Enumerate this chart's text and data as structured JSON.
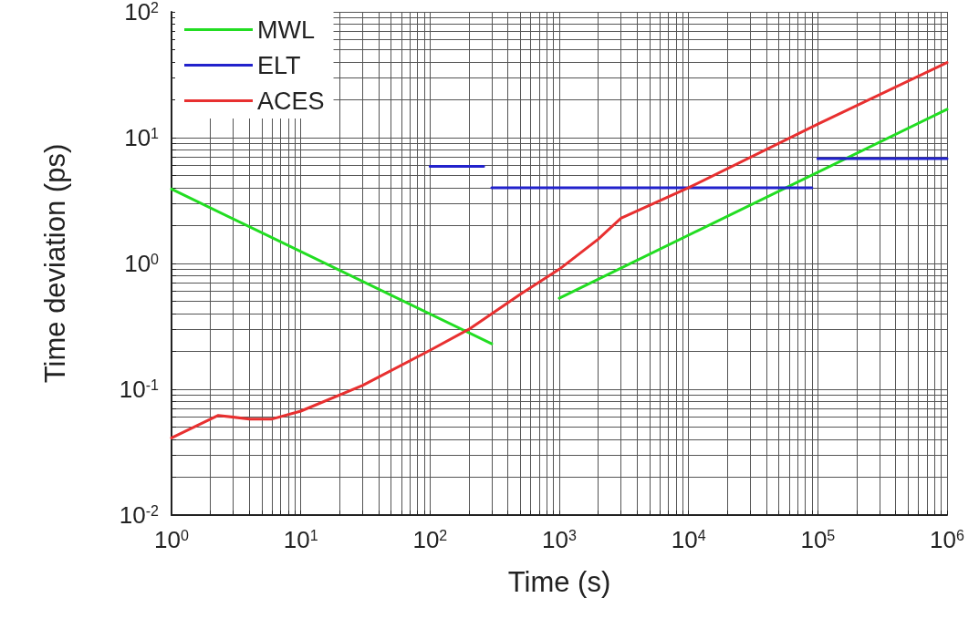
{
  "chart_data": {
    "type": "line",
    "xlabel": "Time (s)",
    "ylabel": "Time deviation (ps)",
    "log": "xy",
    "grid": true,
    "legend": "top left",
    "line_style": "solid",
    "marker": "none",
    "xlim": [
      1,
      1000000
    ],
    "ylim": [
      0.01,
      100
    ],
    "xticks": [
      {
        "value": 1,
        "label": "10$^{0}$"
      },
      {
        "value": 2,
        "label": null
      },
      {
        "value": 3,
        "label": null
      },
      {
        "value": 4,
        "label": null
      },
      {
        "value": 5,
        "label": null
      },
      {
        "value": 6,
        "label": null
      },
      {
        "value": 7,
        "label": null
      },
      {
        "value": 8,
        "label": null
      },
      {
        "value": 9,
        "label": null
      },
      {
        "value": 10,
        "label": "10$^{1}$"
      },
      {
        "value": 20,
        "label": null
      },
      {
        "value": 30,
        "label": null
      },
      {
        "value": 40,
        "label": null
      },
      {
        "value": 50,
        "label": null
      },
      {
        "value": 60,
        "label": null
      },
      {
        "value": 70,
        "label": null
      },
      {
        "value": 80,
        "label": null
      },
      {
        "value": 90,
        "label": null
      },
      {
        "value": 100,
        "label": "10$^{2}$"
      },
      {
        "value": 200,
        "label": null
      },
      {
        "value": 300,
        "label": null
      },
      {
        "value": 400,
        "label": null
      },
      {
        "value": 500,
        "label": null
      },
      {
        "value": 600,
        "label": null
      },
      {
        "value": 700,
        "label": null
      },
      {
        "value": 800,
        "label": null
      },
      {
        "value": 900,
        "label": null
      },
      {
        "value": 1000,
        "label": "10$^{3}$"
      },
      {
        "value": 2000,
        "label": null
      },
      {
        "value": 3000,
        "label": null
      },
      {
        "value": 4000,
        "label": null
      },
      {
        "value": 5000,
        "label": null
      },
      {
        "value": 6000,
        "label": null
      },
      {
        "value": 7000,
        "label": null
      },
      {
        "value": 8000,
        "label": null
      },
      {
        "value": 9000,
        "label": null
      },
      {
        "value": 10000,
        "label": "10$^{4}$"
      },
      {
        "value": 20000,
        "label": null
      },
      {
        "value": 30000,
        "label": null
      },
      {
        "value": 40000,
        "label": null
      },
      {
        "value": 50000,
        "label": null
      },
      {
        "value": 60000,
        "label": null
      },
      {
        "value": 70000,
        "label": null
      },
      {
        "value": 80000,
        "label": null
      },
      {
        "value": 90000,
        "label": null
      },
      {
        "value": 100000,
        "label": "10$^{5}$"
      },
      {
        "value": 200000,
        "label": null
      },
      {
        "value": 300000,
        "label": null
      },
      {
        "value": 400000,
        "label": null
      },
      {
        "value": 500000,
        "label": null
      },
      {
        "value": 600000,
        "label": null
      },
      {
        "value": 700000,
        "label": null
      },
      {
        "value": 800000,
        "label": null
      },
      {
        "value": 900000,
        "label": null
      },
      {
        "value": 1000000,
        "label": "10$^{6}$"
      }
    ],
    "yticks": [
      {
        "value": 0.01,
        "label": "10$^{-2}$"
      },
      {
        "value": 0.02,
        "label": null
      },
      {
        "value": 0.03,
        "label": null
      },
      {
        "value": 0.04,
        "label": null
      },
      {
        "value": 0.05,
        "label": null
      },
      {
        "value": 0.06,
        "label": null
      },
      {
        "value": 0.07,
        "label": null
      },
      {
        "value": 0.08,
        "label": null
      },
      {
        "value": 0.09,
        "label": null
      },
      {
        "value": 0.1,
        "label": "10$^{-1}$"
      },
      {
        "value": 0.2,
        "label": null
      },
      {
        "value": 0.3,
        "label": null
      },
      {
        "value": 0.4,
        "label": null
      },
      {
        "value": 0.5,
        "label": null
      },
      {
        "value": 0.6,
        "label": null
      },
      {
        "value": 0.7,
        "label": null
      },
      {
        "value": 0.8,
        "label": null
      },
      {
        "value": 0.9,
        "label": null
      },
      {
        "value": 1,
        "label": "10$^{0}$"
      },
      {
        "value": 2,
        "label": null
      },
      {
        "value": 3,
        "label": null
      },
      {
        "value": 4,
        "label": null
      },
      {
        "value": 5,
        "label": null
      },
      {
        "value": 6,
        "label": null
      },
      {
        "value": 7,
        "label": null
      },
      {
        "value": 8,
        "label": null
      },
      {
        "value": 9,
        "label": null
      },
      {
        "value": 10,
        "label": "10$^{1}$"
      },
      {
        "value": 20,
        "label": null
      },
      {
        "value": 30,
        "label": null
      },
      {
        "value": 40,
        "label": null
      },
      {
        "value": 50,
        "label": null
      },
      {
        "value": 60,
        "label": null
      },
      {
        "value": 70,
        "label": null
      },
      {
        "value": 80,
        "label": null
      },
      {
        "value": 90,
        "label": null
      },
      {
        "value": 100,
        "label": "10$^{2}$"
      }
    ],
    "series": [
      {
        "name": "MWL",
        "color": "#22dd22",
        "x": [
          1,
          300,
          500,
          1000,
          1000000
        ],
        "values": [
          3.9,
          0.23,
          null,
          0.53,
          16.8
        ]
      },
      {
        "name": "ELT",
        "color": "#2222cc",
        "x": [
          100,
          260,
          280,
          300,
          90000,
          95000,
          100000,
          1000000
        ],
        "values": [
          5.9,
          5.9,
          null,
          4,
          4,
          null,
          6.8,
          6.8
        ]
      },
      {
        "name": "ACES",
        "color": "#e83030",
        "x": [
          1,
          2.3,
          4,
          6,
          10,
          30,
          100,
          200,
          500,
          1000,
          2000,
          3000,
          10000,
          100000,
          1000000
        ],
        "values": [
          0.041,
          0.062,
          0.058,
          0.058,
          0.067,
          0.107,
          0.204,
          0.3,
          0.57,
          0.9,
          1.56,
          2.29,
          4,
          12.8,
          39.5
        ]
      }
    ]
  }
}
